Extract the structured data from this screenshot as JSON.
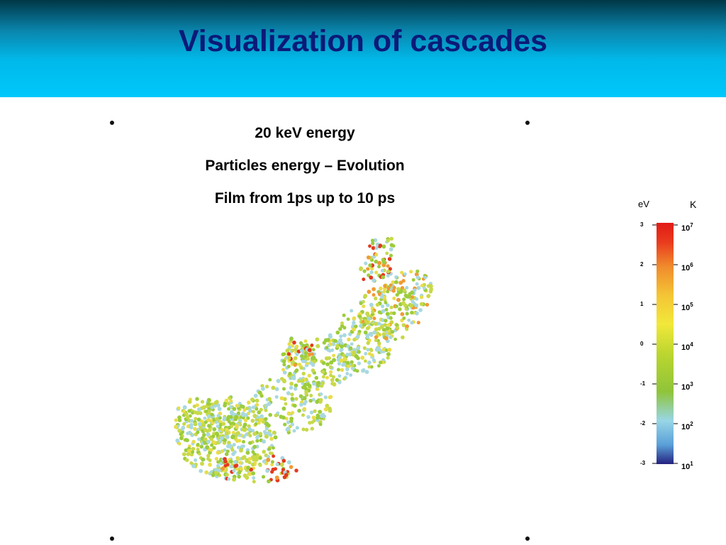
{
  "slide": {
    "title": "Visualization of cascades",
    "captions": [
      "20 keV energy",
      "Particles energy – Evolution",
      "Film from 1ps up to 10 ps"
    ]
  },
  "legend": {
    "left_unit_partial": "eV",
    "right_unit": "K",
    "left_ticks_exponents": [
      "3",
      "2",
      "1",
      "0",
      "-1",
      "-2",
      "-3"
    ],
    "right_ticks": [
      {
        "base": "10",
        "exp": "7"
      },
      {
        "base": "10",
        "exp": "6"
      },
      {
        "base": "10",
        "exp": "5"
      },
      {
        "base": "10",
        "exp": "4"
      },
      {
        "base": "10",
        "exp": "3"
      },
      {
        "base": "10",
        "exp": "2"
      },
      {
        "base": "10",
        "exp": "1"
      }
    ],
    "colors": [
      "#24217f",
      "#5aa0d8",
      "#98d6e6",
      "#8fc43a",
      "#c8d92a",
      "#f2e83a",
      "#f4c535",
      "#f08a2c",
      "#e93b1e",
      "#e21a16"
    ]
  },
  "cascade": {
    "colors": {
      "cool": "#a9d8e0",
      "green": "#9ccc3c",
      "yellowgreen": "#c8d94a",
      "yellow": "#e9dd4a",
      "orange": "#f19a35",
      "red": "#e33a1f"
    }
  }
}
